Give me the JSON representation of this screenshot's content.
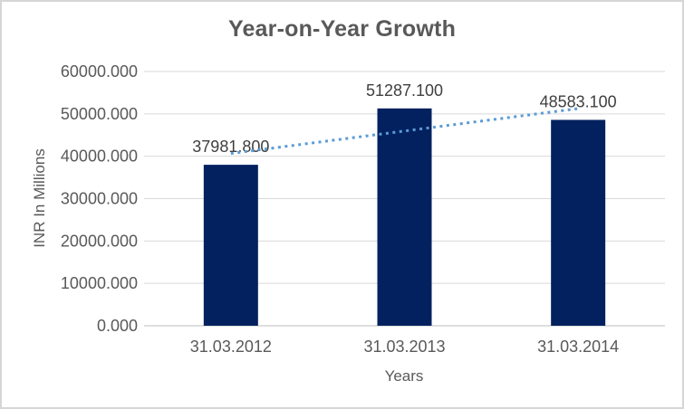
{
  "chart": {
    "title": "Year-on-Year Growth",
    "y_axis_title": "INR In Millions",
    "x_axis_title": "Years"
  },
  "chart_data": {
    "type": "bar",
    "title": "Year-on-Year Growth",
    "categories": [
      "31.03.2012",
      "31.03.2013",
      "31.03.2014"
    ],
    "values": [
      37981.8,
      51287.1,
      48583.1
    ],
    "data_labels": [
      "37981.800",
      "51287.100",
      "48583.100"
    ],
    "xlabel": "Years",
    "ylabel": "INR In Millions",
    "ylim": [
      0,
      60000
    ],
    "y_tick_step": 10000,
    "y_tick_labels": [
      "0.000",
      "10000.000",
      "20000.000",
      "30000.000",
      "40000.000",
      "50000.000",
      "60000.000"
    ],
    "grid": true,
    "legend": "none",
    "colors": {
      "bar": "#03215F",
      "trendline": "#5B9BD5",
      "gridline": "#d9d9d9",
      "axis_line": "#bfbfbf",
      "axis_text": "#595959",
      "data_label_text": "#3f3f3f",
      "title_text": "#595959",
      "chart_border": "#d6d6d6"
    },
    "trendline": {
      "type": "linear",
      "style": "dotted"
    }
  }
}
